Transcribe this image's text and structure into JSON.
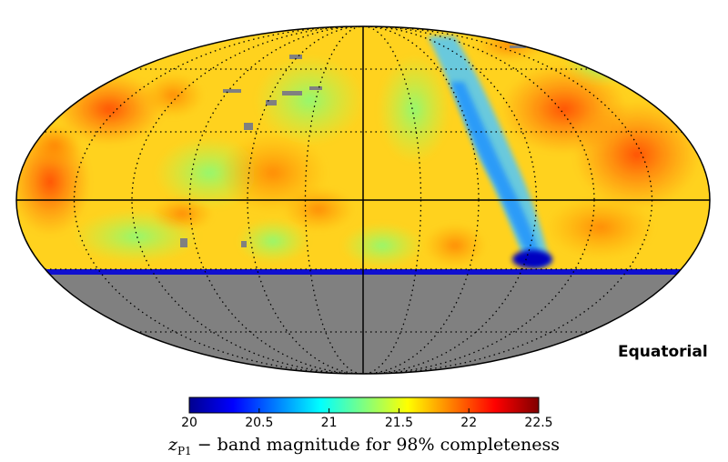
{
  "map": {
    "projection": "Mollweide",
    "coordinate_frame": "Equatorial",
    "declination_limit_deg": -30,
    "masked_color": "#808080"
  },
  "colorbar": {
    "min": 20,
    "max": 22.5,
    "colormap": "jet",
    "ticks": [
      "20",
      "20.5",
      "21",
      "21.5",
      "22",
      "22.5"
    ],
    "title_symbol": "z",
    "title_subscript": "P1",
    "title_rest": " − band magnitude for 98% completeness"
  }
}
